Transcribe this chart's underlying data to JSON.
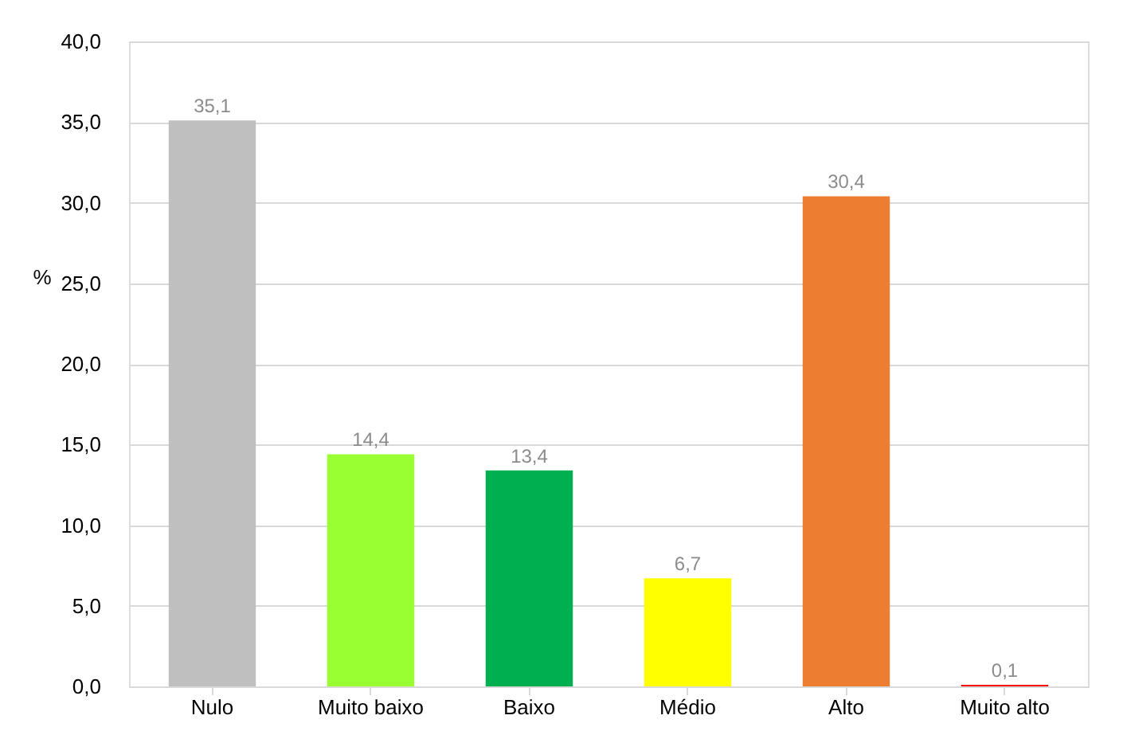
{
  "chart_data": {
    "type": "bar",
    "ylabel": "%",
    "categories": [
      "Nulo",
      "Muito baixo",
      "Baixo",
      "Médio",
      "Alto",
      "Muito alto"
    ],
    "values": [
      35.1,
      14.4,
      13.4,
      6.7,
      30.4,
      0.1
    ],
    "colors": [
      "#bfbfbf",
      "#99ff33",
      "#00b050",
      "#ffff00",
      "#ed7d31",
      "#ff0000"
    ],
    "value_labels": [
      "35,1",
      "14,4",
      "13,4",
      "6,7",
      "30,4",
      "0,1"
    ],
    "ylim": [
      0,
      40
    ],
    "yticks": [
      {
        "value": 0,
        "label": "0,0"
      },
      {
        "value": 5,
        "label": "5,0"
      },
      {
        "value": 10,
        "label": "10,0"
      },
      {
        "value": 15,
        "label": "15,0"
      },
      {
        "value": 20,
        "label": "20,0"
      },
      {
        "value": 25,
        "label": "25,0"
      },
      {
        "value": 30,
        "label": "30,0"
      },
      {
        "value": 35,
        "label": "35,0"
      },
      {
        "value": 40,
        "label": "40,0"
      }
    ],
    "grid": "y"
  }
}
